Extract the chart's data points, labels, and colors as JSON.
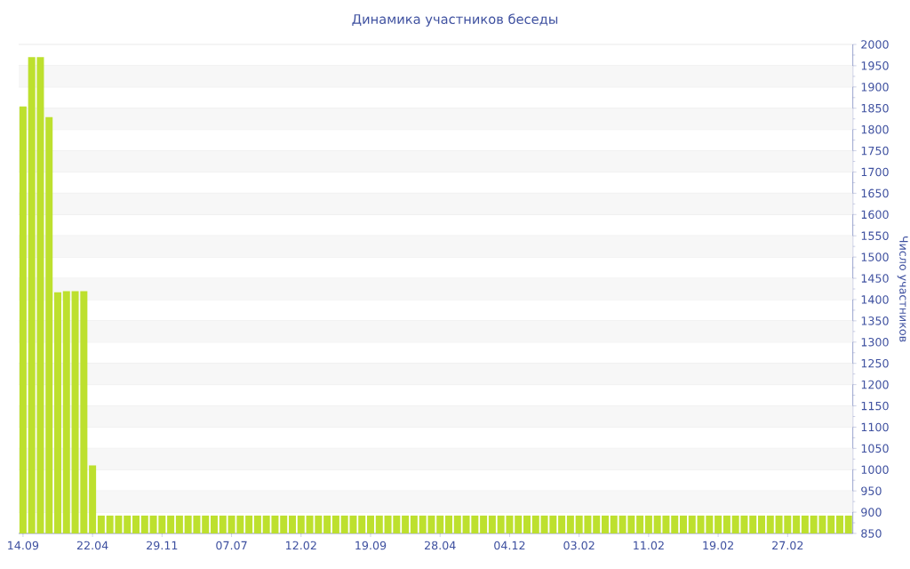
{
  "chart_data": {
    "type": "bar",
    "title": "Динамика участников беседы",
    "ylabel": "Число участников",
    "categories": [
      "14.09",
      null,
      null,
      null,
      null,
      null,
      null,
      null,
      "22.04",
      null,
      null,
      null,
      null,
      null,
      null,
      null,
      "29.11",
      null,
      null,
      null,
      null,
      null,
      null,
      null,
      "07.07",
      null,
      null,
      null,
      null,
      null,
      null,
      null,
      "12.02",
      null,
      null,
      null,
      null,
      null,
      null,
      null,
      "19.09",
      null,
      null,
      null,
      null,
      null,
      null,
      null,
      "28.04",
      null,
      null,
      null,
      null,
      null,
      null,
      null,
      "04.12",
      null,
      null,
      null,
      null,
      null,
      null,
      null,
      "03.02",
      null,
      null,
      null,
      null,
      null,
      null,
      null,
      "11.02",
      null,
      null,
      null,
      null,
      null,
      null,
      null,
      "19.02",
      null,
      null,
      null,
      null,
      null,
      null,
      null,
      "27.02",
      null,
      null,
      null,
      null,
      null,
      null,
      null
    ],
    "values": [
      1854,
      1970,
      1970,
      1829,
      1417,
      1420,
      1420,
      1420,
      1010,
      892,
      892,
      892,
      892,
      892,
      892,
      892,
      892,
      892,
      892,
      892,
      892,
      892,
      892,
      892,
      892,
      892,
      892,
      892,
      892,
      892,
      892,
      892,
      892,
      892,
      892,
      892,
      892,
      892,
      892,
      892,
      892,
      892,
      892,
      892,
      892,
      892,
      892,
      892,
      892,
      892,
      892,
      892,
      892,
      892,
      892,
      892,
      892,
      892,
      892,
      892,
      892,
      892,
      892,
      892,
      892,
      892,
      892,
      892,
      892,
      892,
      892,
      892,
      892,
      892,
      892,
      892,
      892,
      892,
      892,
      892,
      892,
      892,
      892,
      892,
      892,
      892,
      892,
      892,
      892,
      892,
      892,
      892,
      892,
      892,
      892,
      892
    ],
    "color": "#bde02e",
    "ylim": [
      850,
      2000
    ],
    "yticks": [
      850,
      900,
      950,
      1000,
      1050,
      1100,
      1150,
      1200,
      1250,
      1300,
      1350,
      1400,
      1450,
      1500,
      1550,
      1600,
      1650,
      1700,
      1750,
      1800,
      1850,
      1900,
      1950,
      2000
    ],
    "grid": "y"
  }
}
